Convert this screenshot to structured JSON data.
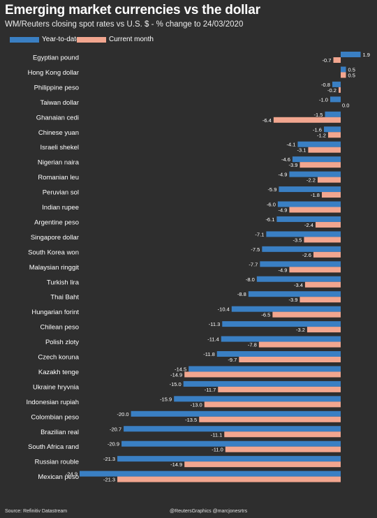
{
  "header": {
    "title": "Emerging market currencies vs the dollar",
    "subtitle": "WM/Reuters closing spot rates vs U.S. $ - % change to 24/03/2020"
  },
  "footer": {
    "source": "Source: Refinitiv Datastream",
    "credit": "@ReutersGraphics  @marcjonesrtrs"
  },
  "colors": {
    "background": "#2e2e2e",
    "ytd": "#3a7fc3",
    "current_month": "#f2a68f",
    "text": "#ffffff"
  },
  "chart_data": {
    "type": "bar",
    "orientation": "horizontal",
    "categories": [
      "Egyptian pound",
      "Hong Kong dollar",
      "Philippine peso",
      "Taiwan dollar",
      "Ghanaian cedi",
      "Chinese yuan",
      "Israeli shekel",
      "Nigerian naira",
      "Romanian leu",
      "Peruvian sol",
      "Indian rupee",
      "Argentine peso",
      "Singapore dollar",
      "South Korea won",
      "Malaysian ringgit",
      "Turkish lira",
      "Thai Baht",
      "Hungarian forint",
      "Chilean peso",
      "Polish zloty",
      "Czech koruna",
      "Kazakh tenge",
      "Ukraine hryvnia",
      "Indonesian rupiah",
      "Colombian peso",
      "Brazilian real",
      "South Africa rand",
      "Russian rouble",
      "Mexican peso"
    ],
    "series": [
      {
        "name": "Year-to-date",
        "color": "#3a7fc3",
        "values": [
          1.9,
          0.5,
          -0.8,
          -1.0,
          -1.5,
          -1.6,
          -4.1,
          -4.6,
          -4.9,
          -5.9,
          -6.0,
          -6.1,
          -7.1,
          -7.5,
          -7.7,
          -8.0,
          -8.8,
          -10.4,
          -11.3,
          -11.4,
          -11.8,
          -14.5,
          -15.0,
          -15.9,
          -20.0,
          -20.7,
          -20.9,
          -21.3,
          -24.9
        ],
        "labels": [
          "1.9",
          "0.5",
          "-0.8",
          "-1.0",
          "-1.5",
          "-1.6",
          "-4.1",
          "-4.6",
          "-4.9",
          "-5.9",
          "-6.0",
          "-6.1",
          "-7.1",
          "-7.5",
          "-7.7",
          "-8.0",
          "-8.8",
          "-10.4",
          "-11.3",
          "-11.4",
          "-11.8",
          "-14.5",
          "-15.0",
          "-15.9",
          "-20.0",
          "-20.7",
          "-20.9",
          "-21.3",
          "-24.9"
        ]
      },
      {
        "name": "Current month",
        "color": "#f2a68f",
        "values": [
          -0.7,
          0.5,
          -0.2,
          0.0,
          -6.4,
          -1.2,
          -3.1,
          -3.9,
          -2.2,
          -1.8,
          -4.9,
          -2.4,
          -3.5,
          -2.6,
          -4.9,
          -3.4,
          -3.9,
          -6.5,
          -3.2,
          -7.8,
          -9.7,
          -14.9,
          -11.7,
          -13.0,
          -13.5,
          -11.1,
          -11.0,
          -14.9,
          -21.3
        ],
        "labels": [
          "-0.7",
          "0.5",
          "-0.2",
          "0.0",
          "-6.4",
          "-1.2",
          "-3.1",
          "-3.9",
          "-2.2",
          "-1.8",
          "-4.9",
          "-2.4",
          "-3.5",
          "-2.6",
          "-4.9",
          "-3.4",
          "-3.9",
          "-6.5",
          "-3.2",
          "-7.8",
          "-9.7",
          "-14.9",
          "-11.7",
          "-13.0",
          "-13.5",
          "-11.1",
          "-11.0",
          "-14.9",
          "-21.3"
        ]
      }
    ],
    "xlim": [
      -24.9,
      1.9
    ],
    "grid": false,
    "legend_position": "top-left",
    "data_labels": true
  }
}
